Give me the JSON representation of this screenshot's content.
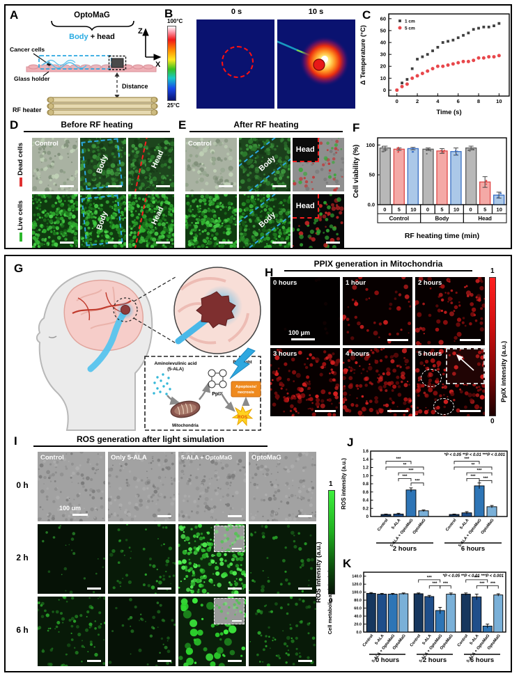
{
  "panel_a": {
    "label": "A",
    "device_name": "OptoMaG",
    "body_label": "Body",
    "head_suffix": " + head",
    "cancer_cells": "Cancer cells",
    "glass_holder": "Glass holder",
    "distance": "Distance",
    "rf_heater": "RF heater",
    "axis_z": "Z",
    "axis_x": "X",
    "body_color": "#29abe2"
  },
  "panel_b": {
    "label": "B",
    "scale_max": "100°C",
    "scale_min": "25°C",
    "frames": [
      {
        "time": "0 s"
      },
      {
        "time": "10 s"
      }
    ]
  },
  "panel_c": {
    "label": "C"
  },
  "panel_d": {
    "label": "D",
    "title": "Before RF heating",
    "row_labels": [
      "Dead cells",
      "Live cells"
    ],
    "row_label_colors": [
      "#e03131",
      "#2db82d"
    ],
    "cells": [
      {
        "tag": "Control"
      },
      {
        "tag": "Body"
      },
      {
        "tag": "Head"
      },
      {
        "tag": ""
      },
      {
        "tag": "Body"
      },
      {
        "tag": "Head"
      }
    ]
  },
  "panel_e": {
    "label": "E",
    "title": "After RF heating",
    "cells": [
      {
        "tag": "Control"
      },
      {
        "tag": "Body"
      },
      {
        "tag": "Head"
      },
      {
        "tag": ""
      },
      {
        "tag": "Body"
      },
      {
        "tag": "Head"
      }
    ]
  },
  "panel_f": {
    "label": "F"
  },
  "panel_g": {
    "label": "G",
    "ala_line1": "Aminolevulinic acid",
    "ala_line2": "(5-ALA)",
    "mitochondria": "Mitochondria",
    "ppix": "PpIX",
    "blue_light": "Blue light",
    "outcome_line1": "Apoptosis/",
    "outcome_line2": "necrosis",
    "ros": "ROS"
  },
  "panel_h": {
    "label": "H",
    "title": "PPIX generation in Mitochondria",
    "timepoints": [
      "0 hours",
      "1 hour",
      "2 hours",
      "3 hours",
      "4 hours",
      "5 hours"
    ],
    "scalebar": "100 μm",
    "colorbar_label": "PpIX intensity (a.u.)",
    "colorbar_max": "1",
    "colorbar_min": "0"
  },
  "panel_i": {
    "label": "I",
    "title": "ROS generation after light simulation",
    "columns": [
      "Control",
      "Only 5-ALA",
      "5-ALA + OptoMaG",
      "OptoMaG"
    ],
    "rows": [
      "0 h",
      "2 h",
      "6 h"
    ],
    "scalebar": "100 um",
    "colorbar_label": "ROS Intensity (a.u.)",
    "colorbar_max": "1",
    "colorbar_min": "0"
  },
  "panel_j": {
    "label": "J"
  },
  "panel_k": {
    "label": "K"
  },
  "chart_data": [
    {
      "id": "C",
      "type": "scatter",
      "xlabel": "Time (s)",
      "ylabel": "Δ Temperature (°C)",
      "xlim": [
        -0.8,
        11
      ],
      "ylim": [
        -5,
        64
      ],
      "xticks": [
        0,
        2,
        4,
        6,
        8,
        10
      ],
      "yticks": [
        0,
        10,
        20,
        30,
        40,
        50,
        60
      ],
      "legend_position": "top-left-inside",
      "series": [
        {
          "name": "1 cm",
          "marker": "square",
          "color": "#3f3f3f",
          "x": [
            0,
            0.5,
            1,
            1.5,
            2,
            2.5,
            3,
            3.5,
            4,
            4.5,
            5,
            5.5,
            6,
            6.5,
            7,
            7.5,
            8,
            8.5,
            9,
            9.5,
            10
          ],
          "y": [
            0,
            6,
            9,
            18,
            26,
            28,
            30,
            33,
            36,
            40,
            41,
            42,
            44,
            46,
            48,
            51,
            52,
            53,
            53,
            54,
            56
          ]
        },
        {
          "name": "5 cm",
          "marker": "circle",
          "color": "#e8474b",
          "x": [
            0,
            0.5,
            1,
            1.5,
            2,
            2.5,
            3,
            3.5,
            4,
            4.5,
            5,
            5.5,
            6,
            6.5,
            7,
            7.5,
            8,
            8.5,
            9,
            9.5,
            10
          ],
          "y": [
            0,
            3,
            5,
            10,
            12,
            14,
            16,
            18,
            20,
            20,
            21,
            22,
            23,
            24,
            24,
            25,
            27,
            27,
            28,
            28,
            29
          ]
        }
      ]
    },
    {
      "id": "F",
      "type": "bar",
      "ylabel": "Cell viability (%)",
      "xlabel": "RF heating time (min)",
      "ylim": [
        0,
        112
      ],
      "yticks": [
        {
          "v": 0,
          "t": "0.0"
        },
        {
          "v": 50,
          "t": "50"
        },
        {
          "v": 100,
          "t": "100"
        }
      ],
      "groups": [
        "Control",
        "Body",
        "Head"
      ],
      "bar_labels": [
        "0",
        "5",
        "10"
      ],
      "bar_colors": [
        "#b8b8b8",
        "#f4a9a6",
        "#abc8e8"
      ],
      "bar_borders": [
        "#5a5a5a",
        "#e04848",
        "#3a6fc4"
      ],
      "series": [
        {
          "group": "Control",
          "values": [
            95,
            93,
            94
          ],
          "errors": [
            3,
            2,
            2
          ]
        },
        {
          "group": "Body",
          "values": [
            93,
            90,
            89
          ],
          "errors": [
            2,
            4,
            6
          ]
        },
        {
          "group": "Head",
          "values": [
            95,
            38,
            16
          ],
          "errors": [
            3,
            9,
            5
          ]
        }
      ]
    },
    {
      "id": "J",
      "type": "bar",
      "ylabel": "ROS intensity (a.u.)",
      "sig_note": "*P < 0.05    **P < 0.01    ***P < 0.001",
      "ylim": [
        0,
        1.6
      ],
      "yticks": [
        {
          "v": 0,
          "t": "0"
        },
        {
          "v": 0.2,
          "t": "0.2"
        },
        {
          "v": 0.4,
          "t": "0.4"
        },
        {
          "v": 0.6,
          "t": "0.6"
        },
        {
          "v": 0.8,
          "t": "0.8"
        },
        {
          "v": 1.0,
          "t": "1.0"
        },
        {
          "v": 1.2,
          "t": "1.2"
        },
        {
          "v": 1.4,
          "t": "1.4"
        },
        {
          "v": 1.6,
          "t": "1.6"
        }
      ],
      "categories": [
        "Control",
        "5-ALA",
        "5-ALA + OptoMaG",
        "OptoMaG"
      ],
      "bar_colors": [
        "#17375e",
        "#1f4e8a",
        "#2e75b6",
        "#7ab0d8"
      ],
      "series": [
        {
          "group": "2 hours",
          "values": [
            0.05,
            0.06,
            0.65,
            0.14
          ],
          "errors": [
            0.01,
            0.02,
            0.05,
            0.02
          ],
          "sig": [
            {
              "a": 0,
              "b": 2,
              "y": 1.35,
              "label": "***"
            },
            {
              "a": 0,
              "b": 3,
              "y": 1.21,
              "label": "**"
            },
            {
              "a": 1,
              "b": 3,
              "y": 1.07,
              "label": "***"
            },
            {
              "a": 1,
              "b": 2,
              "y": 0.93,
              "label": "***"
            },
            {
              "a": 2,
              "b": 3,
              "y": 0.82,
              "label": "***"
            }
          ]
        },
        {
          "group": "6 hours",
          "values": [
            0.05,
            0.09,
            0.75,
            0.24
          ],
          "errors": [
            0.01,
            0.03,
            0.07,
            0.03
          ],
          "sig": [
            {
              "a": 0,
              "b": 2,
              "y": 1.35,
              "label": "***"
            },
            {
              "a": 0,
              "b": 3,
              "y": 1.21,
              "label": "**"
            },
            {
              "a": 1,
              "b": 3,
              "y": 1.07,
              "label": "***"
            },
            {
              "a": 1,
              "b": 2,
              "y": 0.93,
              "label": "***"
            },
            {
              "a": 2,
              "b": 3,
              "y": 0.88,
              "label": "***"
            }
          ]
        }
      ]
    },
    {
      "id": "K",
      "type": "bar",
      "ylabel": "Cell metabolic activity (%)",
      "sig_note": "*P < 0.05    **P < 0.01    ***P < 0.001",
      "ylim": [
        0,
        150
      ],
      "yticks": [
        {
          "v": 0,
          "t": "0.0"
        },
        {
          "v": 20,
          "t": "20.0"
        },
        {
          "v": 40,
          "t": "40.0"
        },
        {
          "v": 60,
          "t": "60.0"
        },
        {
          "v": 80,
          "t": "80.0"
        },
        {
          "v": 100,
          "t": "100.0"
        },
        {
          "v": 120,
          "t": "120.0"
        },
        {
          "v": 140,
          "t": "140.0"
        }
      ],
      "categories": [
        "Control",
        "5-ALA",
        "5-ALA + OptoMaG",
        "OptoMaG"
      ],
      "bar_colors": [
        "#17375e",
        "#1f4e8a",
        "#2e75b6",
        "#7ab0d8"
      ],
      "series": [
        {
          "group": "0 hours",
          "values": [
            97,
            95,
            95,
            96
          ],
          "errors": [
            2,
            2,
            2,
            2
          ],
          "sig": []
        },
        {
          "group": "2 hours",
          "values": [
            96,
            89,
            54,
            95
          ],
          "errors": [
            2,
            3,
            8,
            3
          ],
          "sig": [
            {
              "a": 0,
              "b": 2,
              "y": 131,
              "label": "***"
            },
            {
              "a": 1,
              "b": 2,
              "y": 116,
              "label": "***"
            },
            {
              "a": 2,
              "b": 3,
              "y": 116,
              "label": "***"
            }
          ]
        },
        {
          "group": "6 hours",
          "values": [
            95,
            88,
            15,
            93
          ],
          "errors": [
            3,
            7,
            5,
            3
          ],
          "sig": [
            {
              "a": 0,
              "b": 2,
              "y": 131,
              "label": "***"
            },
            {
              "a": 1,
              "b": 2,
              "y": 116,
              "label": "***"
            },
            {
              "a": 2,
              "b": 3,
              "y": 116,
              "label": "***"
            }
          ]
        }
      ]
    }
  ]
}
